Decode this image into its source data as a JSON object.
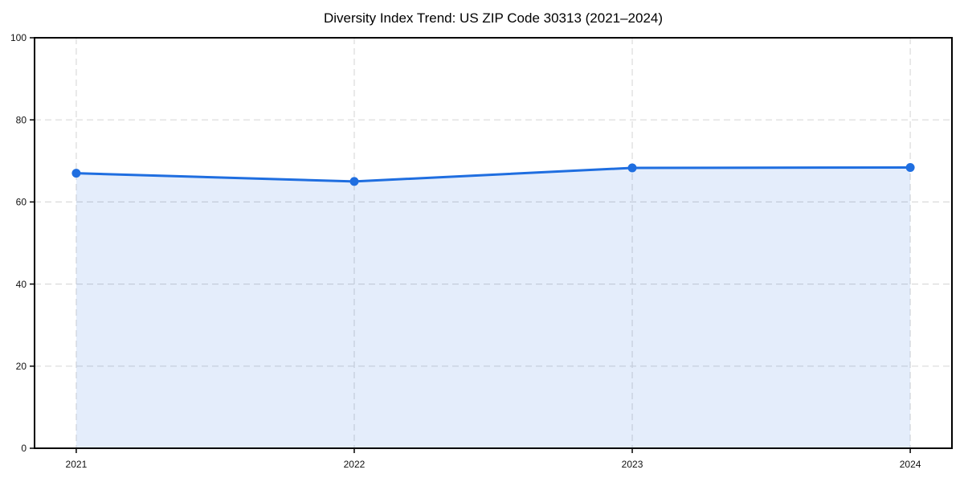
{
  "chart_data": {
    "type": "line",
    "title": "Diversity Index Trend: US ZIP Code 30313 (2021–2024)",
    "x": [
      2021,
      2022,
      2023,
      2024
    ],
    "categories": [
      "2021",
      "2022",
      "2023",
      "2024"
    ],
    "series": [
      {
        "name": "Diversity Index",
        "values": [
          67,
          65,
          68.3,
          68.4
        ]
      }
    ],
    "xlabel": "",
    "ylabel": "",
    "ylim": [
      0,
      100
    ],
    "yticks": [
      0,
      20,
      40,
      60,
      80,
      100
    ],
    "grid": true,
    "legend_position": "none",
    "area_fill": true,
    "colors": {
      "line": "#1f6ee0",
      "marker": "#1f6ee0",
      "fill": "#1f6ee0",
      "fill_opacity": 0.12,
      "grid": "#dadada",
      "axis": "#000000",
      "tick_label": "#111111",
      "background": "#ffffff"
    }
  }
}
